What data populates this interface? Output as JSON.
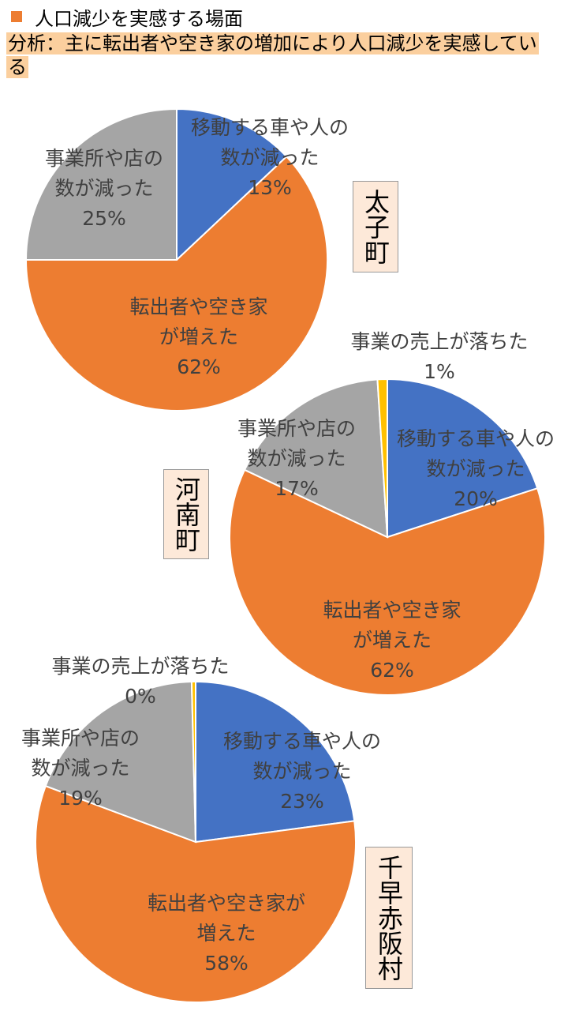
{
  "header": {
    "title": "人口減少を実感する場面",
    "analysis": "分析：主に転出者や空き家の増加により人口減少を実感している",
    "title_icon_color": "#ed7d31"
  },
  "colors": {
    "moving": "#4472c4",
    "moveout": "#ed7d31",
    "business": "#a5a5a5",
    "sales": "#ffc000"
  },
  "chart_data": [
    {
      "type": "pie",
      "town": "太子町",
      "slices": [
        {
          "key": "moving",
          "label": [
            "移動する車や人の",
            "数が減った"
          ],
          "pct": "13%",
          "value": 13
        },
        {
          "key": "moveout",
          "label": [
            "転出者や空き家",
            "が増えた"
          ],
          "pct": "62%",
          "value": 62
        },
        {
          "key": "business",
          "label": [
            "事業所や店の",
            "数が減った"
          ],
          "pct": "25%",
          "value": 25
        }
      ]
    },
    {
      "type": "pie",
      "town": "河南町",
      "slices": [
        {
          "key": "moving",
          "label": [
            "移動する車や人の",
            "数が減った"
          ],
          "pct": "20%",
          "value": 20
        },
        {
          "key": "moveout",
          "label": [
            "転出者や空き家",
            "が増えた"
          ],
          "pct": "62%",
          "value": 62
        },
        {
          "key": "business",
          "label": [
            "事業所や店の",
            "数が減った"
          ],
          "pct": "17%",
          "value": 17
        },
        {
          "key": "sales",
          "label": [
            "事業の売上が落ちた"
          ],
          "pct": "1%",
          "value": 1
        }
      ]
    },
    {
      "type": "pie",
      "town": "千早赤阪村",
      "slices": [
        {
          "key": "moving",
          "label": [
            "移動する車や人の",
            "数が減った"
          ],
          "pct": "23%",
          "value": 23
        },
        {
          "key": "moveout",
          "label": [
            "転出者や空き家が",
            "増えた"
          ],
          "pct": "58%",
          "value": 58
        },
        {
          "key": "business",
          "label": [
            "事業所や店の",
            "数が減った"
          ],
          "pct": "19%",
          "value": 19
        },
        {
          "key": "sales",
          "label": [
            "事業の売上が落ちた"
          ],
          "pct": "0%",
          "value": 0.4
        }
      ]
    }
  ]
}
